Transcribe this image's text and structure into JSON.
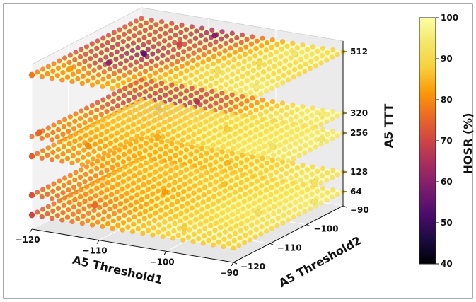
{
  "chart_data": {
    "type": "scatter",
    "projection": "3d",
    "x": {
      "label": "A5 Threshold1",
      "range": [
        -120,
        -90
      ],
      "ticks": [
        -120,
        -110,
        -100,
        -90
      ],
      "tick_labels": [
        "−120",
        "−110",
        "−100",
        "−90"
      ]
    },
    "y": {
      "label": "A5 Threshold2",
      "range": [
        -120,
        -90
      ],
      "ticks": [
        -120,
        -110,
        -100,
        -90
      ],
      "tick_labels": [
        "−120",
        "−110",
        "−100",
        "−90"
      ]
    },
    "z": {
      "label": "A5 TTT",
      "ticks": [
        64,
        128,
        256,
        320,
        512
      ],
      "tick_labels": [
        "64",
        "128",
        "256",
        "320",
        "512"
      ]
    },
    "layers": [
      64,
      128,
      256,
      320,
      512
    ],
    "colorbar": {
      "label": "HOSR (%)",
      "range": [
        40,
        100
      ],
      "ticks": [
        40,
        50,
        60,
        70,
        80,
        90,
        100
      ],
      "tick_labels": [
        "40",
        "50",
        "60",
        "70",
        "80",
        "90",
        "100"
      ],
      "colormap": "inferno"
    },
    "reference_planes": {
      "value": 100,
      "color": "#fcffa4"
    },
    "series": [
      {
        "layer": 512,
        "points": [
          {
            "x": -120,
            "y": -120,
            "hosr": 78
          },
          {
            "x": -117,
            "y": -115,
            "hosr": 82
          },
          {
            "x": -114,
            "y": -110,
            "hosr": 62
          },
          {
            "x": -112,
            "y": -104,
            "hosr": 55
          },
          {
            "x": -110,
            "y": -98,
            "hosr": 70
          },
          {
            "x": -108,
            "y": -92,
            "hosr": 60
          },
          {
            "x": -105,
            "y": -120,
            "hosr": 86
          },
          {
            "x": -102,
            "y": -114,
            "hosr": 89
          },
          {
            "x": -100,
            "y": -106,
            "hosr": 92
          },
          {
            "x": -97,
            "y": -100,
            "hosr": 91
          },
          {
            "x": -95,
            "y": -94,
            "hosr": 94
          },
          {
            "x": -92,
            "y": -110,
            "hosr": 95
          }
        ]
      },
      {
        "layer": 320,
        "points": [
          {
            "x": -120,
            "y": -118,
            "hosr": 75
          },
          {
            "x": -115,
            "y": -110,
            "hosr": 80
          },
          {
            "x": -112,
            "y": -100,
            "hosr": 58
          },
          {
            "x": -109,
            "y": -95,
            "hosr": 66
          },
          {
            "x": -104,
            "y": -115,
            "hosr": 88
          },
          {
            "x": -100,
            "y": -105,
            "hosr": 90
          },
          {
            "x": -96,
            "y": -98,
            "hosr": 93
          },
          {
            "x": -92,
            "y": -92,
            "hosr": 95
          }
        ]
      },
      {
        "layer": 256,
        "points": [
          {
            "x": -120,
            "y": -120,
            "hosr": 74
          },
          {
            "x": -116,
            "y": -112,
            "hosr": 80
          },
          {
            "x": -110,
            "y": -104,
            "hosr": 84
          },
          {
            "x": -104,
            "y": -96,
            "hosr": 88
          },
          {
            "x": -100,
            "y": -112,
            "hosr": 90
          },
          {
            "x": -95,
            "y": -100,
            "hosr": 93
          },
          {
            "x": -91,
            "y": -94,
            "hosr": 94
          }
        ]
      },
      {
        "layer": 128,
        "points": [
          {
            "x": -120,
            "y": -120,
            "hosr": 72
          },
          {
            "x": -115,
            "y": -110,
            "hosr": 76
          },
          {
            "x": -110,
            "y": -100,
            "hosr": 80
          },
          {
            "x": -105,
            "y": -94,
            "hosr": 85
          },
          {
            "x": -100,
            "y": -114,
            "hosr": 88
          },
          {
            "x": -95,
            "y": -104,
            "hosr": 91
          },
          {
            "x": -91,
            "y": -96,
            "hosr": 93
          }
        ]
      },
      {
        "layer": 64,
        "points": [
          {
            "x": -120,
            "y": -120,
            "hosr": 70
          },
          {
            "x": -115,
            "y": -112,
            "hosr": 76
          },
          {
            "x": -110,
            "y": -102,
            "hosr": 82
          },
          {
            "x": -105,
            "y": -95,
            "hosr": 86
          },
          {
            "x": -100,
            "y": -115,
            "hosr": 88
          },
          {
            "x": -95,
            "y": -104,
            "hosr": 92
          },
          {
            "x": -91,
            "y": -96,
            "hosr": 94
          }
        ]
      }
    ]
  }
}
